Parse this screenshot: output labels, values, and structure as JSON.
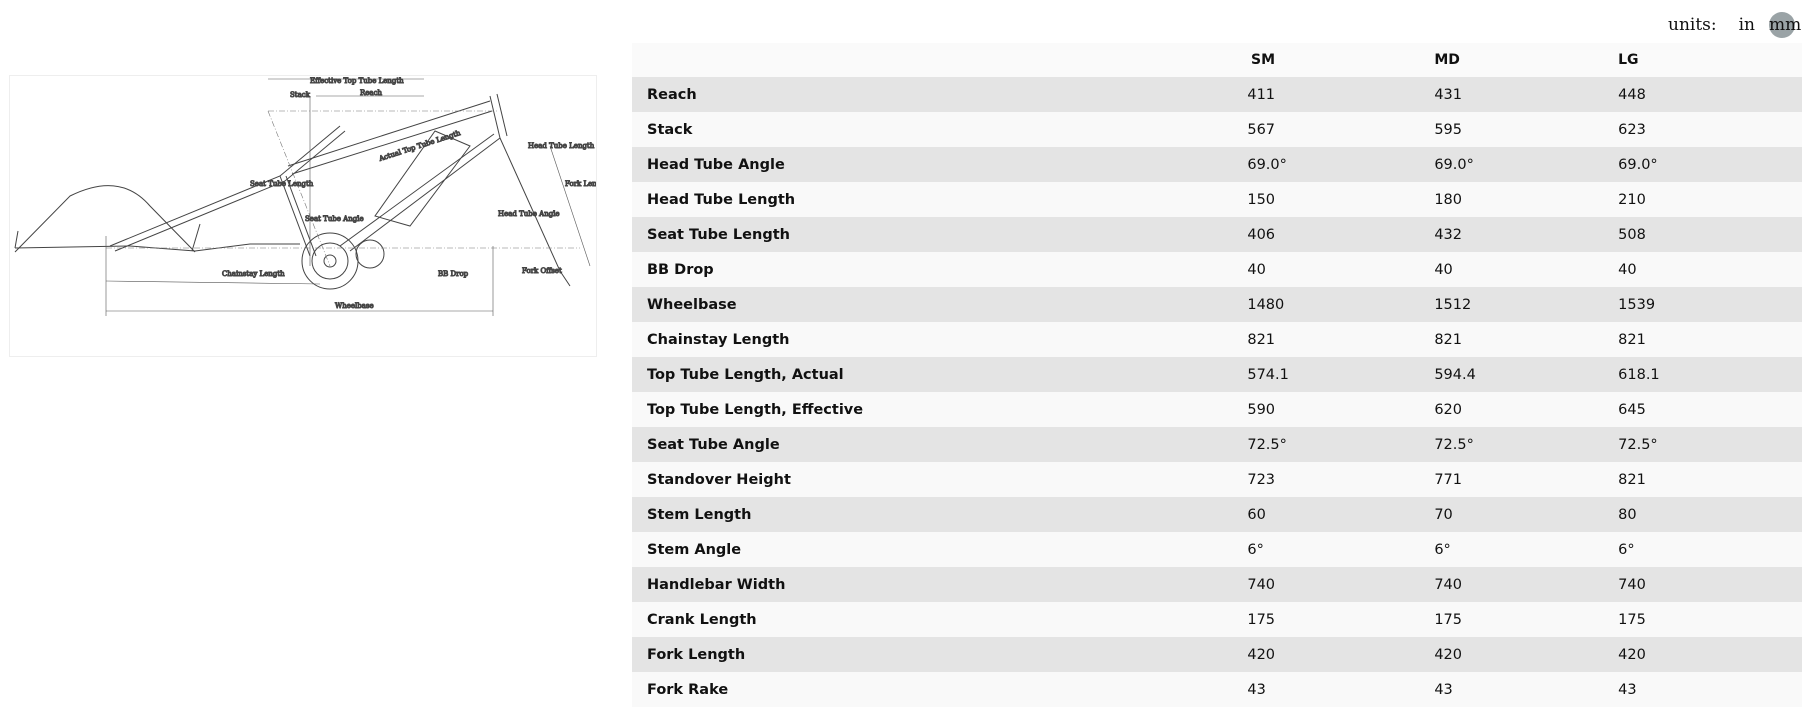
{
  "units": {
    "label": "units:",
    "options": [
      "in",
      "mm"
    ],
    "selected": "mm",
    "selected_color": "#9aa3a6"
  },
  "diagram": {
    "labels": {
      "ett": "Effective Top Tube Length",
      "stack": "Stack",
      "reach": "Reach",
      "htl": "Head Tube Length",
      "att": "Actual Top Tube Length",
      "stl": "Seat Tube Length",
      "fork": "Fork Length",
      "sta": "Seat Tube Angle",
      "hta": "Head Tube Angle",
      "bb": "BB Drop",
      "cs": "Chainstay Length",
      "offset": "Fork Offset",
      "wb": "Wheelbase"
    }
  },
  "table": {
    "columns": [
      "SM",
      "MD",
      "LG"
    ],
    "rows": [
      {
        "name": "Reach",
        "values": [
          "411",
          "431",
          "448"
        ]
      },
      {
        "name": "Stack",
        "values": [
          "567",
          "595",
          "623"
        ]
      },
      {
        "name": "Head Tube Angle",
        "values": [
          "69.0°",
          "69.0°",
          "69.0°"
        ]
      },
      {
        "name": "Head Tube Length",
        "values": [
          "150",
          "180",
          "210"
        ]
      },
      {
        "name": "Seat Tube Length",
        "values": [
          "406",
          "432",
          "508"
        ]
      },
      {
        "name": "BB Drop",
        "values": [
          "40",
          "40",
          "40"
        ]
      },
      {
        "name": "Wheelbase",
        "values": [
          "1480",
          "1512",
          "1539"
        ]
      },
      {
        "name": "Chainstay Length",
        "values": [
          "821",
          "821",
          "821"
        ]
      },
      {
        "name": "Top Tube Length, Actual",
        "values": [
          "574.1",
          "594.4",
          "618.1"
        ]
      },
      {
        "name": "Top Tube Length, Effective",
        "values": [
          "590",
          "620",
          "645"
        ]
      },
      {
        "name": "Seat Tube Angle",
        "values": [
          "72.5°",
          "72.5°",
          "72.5°"
        ]
      },
      {
        "name": "Standover Height",
        "values": [
          "723",
          "771",
          "821"
        ]
      },
      {
        "name": "Stem Length",
        "values": [
          "60",
          "70",
          "80"
        ]
      },
      {
        "name": "Stem Angle",
        "values": [
          "6°",
          "6°",
          "6°"
        ]
      },
      {
        "name": "Handlebar Width",
        "values": [
          "740",
          "740",
          "740"
        ]
      },
      {
        "name": "Crank Length",
        "values": [
          "175",
          "175",
          "175"
        ]
      },
      {
        "name": "Fork Length",
        "values": [
          "420",
          "420",
          "420"
        ]
      },
      {
        "name": "Fork Rake",
        "values": [
          "43",
          "43",
          "43"
        ]
      }
    ]
  }
}
